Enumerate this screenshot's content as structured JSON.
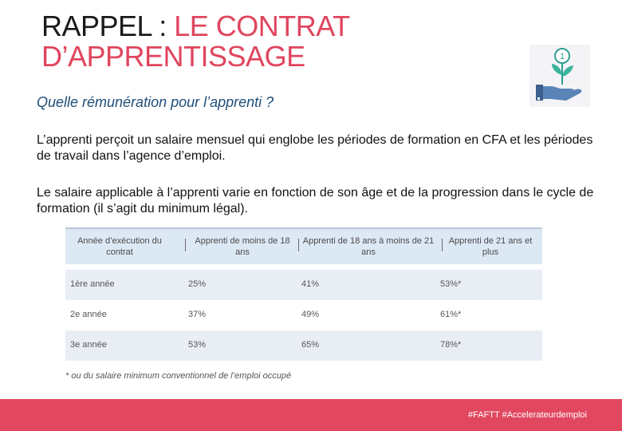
{
  "title": {
    "plain": "RAPPEL : ",
    "accent_1": "LE CONTRAT",
    "accent_2": "D’APPRENTISSAGE"
  },
  "subtitle": "Quelle rémunération pour l’apprenti ?",
  "paragraphs": [
    "L’apprenti perçoit un salaire mensuel qui englobe les périodes de formation en CFA et les périodes de travail dans l’agence d’emploi.",
    "Le salaire applicable à l’apprenti varie en fonction de son âge et de la progression dans le cycle de formation (il s’agit du minimum légal)."
  ],
  "icon": {
    "name": "hand-plant-coin-icon",
    "coin_label": "1"
  },
  "table": {
    "headers": [
      "Année d’exécution du contrat",
      "Apprenti de moins de 18 ans",
      "Apprenti de 18 ans à moins de 21 ans",
      "Apprenti de 21 ans et plus"
    ],
    "rows": [
      [
        "1ère année",
        "25%",
        "41%",
        "53%*"
      ],
      [
        "2e année",
        "37%",
        "49%",
        "61%*"
      ],
      [
        "3e année",
        "53%",
        "65%",
        "78%*"
      ]
    ],
    "footnote": "* ou du salaire minimum conventionnel de l’emploi occupé"
  },
  "footer": {
    "hashtags": "#FAFTT #Accelerateurdemploi"
  },
  "colors": {
    "accent": "#e0455e",
    "subtitle": "#1f4e79",
    "footer": "#e1475f"
  }
}
